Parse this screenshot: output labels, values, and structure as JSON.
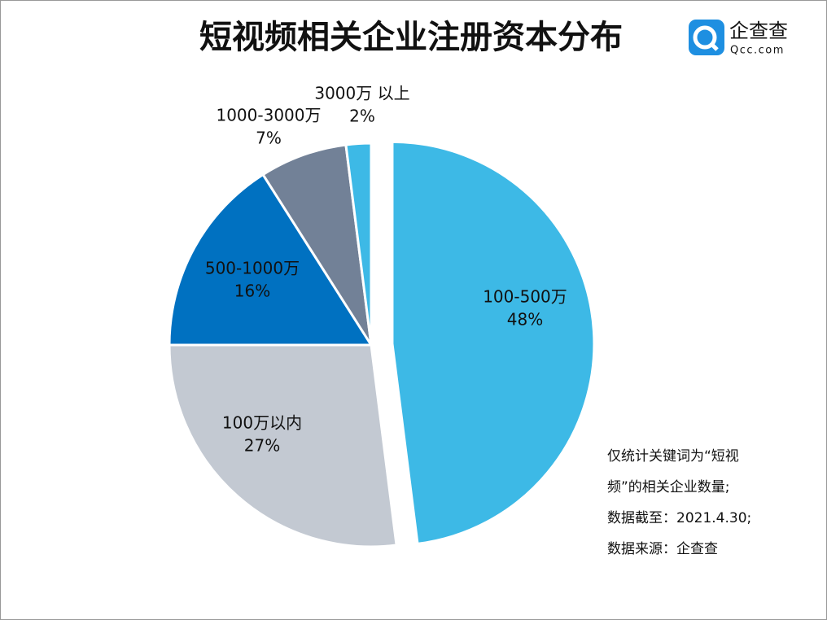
{
  "chart_data": {
    "type": "pie",
    "title": "短视频相关企业注册资本分布",
    "categories": [
      "100-500万",
      "100万以内",
      "500-1000万",
      "1000-3000万",
      "3000万 以上"
    ],
    "values": [
      48,
      27,
      16,
      7,
      2
    ],
    "value_labels": [
      "48%",
      "27%",
      "16%",
      "7%",
      "2%"
    ],
    "colors": [
      "#3db9e6",
      "#c3c9d2",
      "#0071c1",
      "#728197",
      "#3db9e6"
    ],
    "exploded": [
      true,
      false,
      false,
      false,
      false
    ],
    "notes": [
      "仅统计关键词为“短视",
      "频”的相关企业数量;",
      "数据截至：2021.4.30;",
      "数据来源：企查查"
    ]
  },
  "logo": {
    "name": "企查查",
    "url": "Qcc.com"
  }
}
